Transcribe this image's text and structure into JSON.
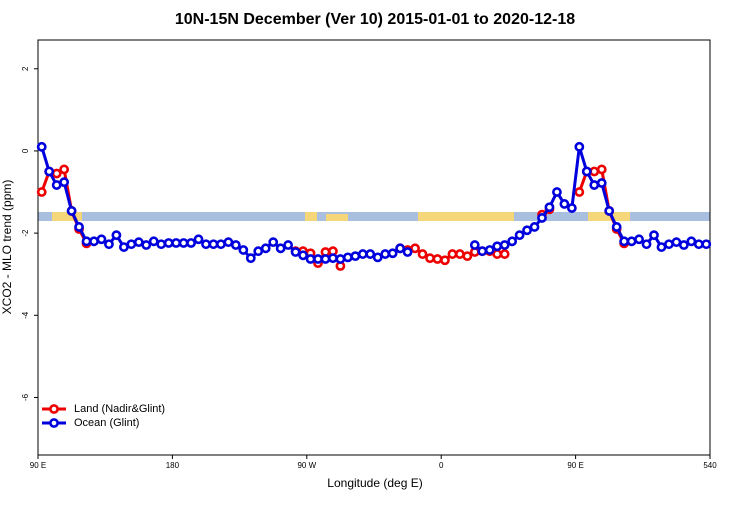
{
  "chart_data": {
    "type": "line",
    "title": "10N-15N December (Ver 10)   2015-01-01 to 2020-12-18",
    "xlabel": "Longitude (deg E)",
    "ylabel": "XCO2 - MLO trend (ppm)",
    "legend": "bottomleft",
    "x": [
      92.5,
      97.5,
      102.5,
      107.5,
      112.5,
      117.5,
      122.5,
      127.5,
      132.5,
      137.5,
      142.5,
      147.5,
      152.5,
      157.5,
      162.5,
      167.5,
      172.5,
      177.5,
      182.5,
      187.5,
      192.5,
      197.5,
      202.5,
      207.5,
      212.5,
      217.5,
      222.5,
      227.5,
      232.5,
      237.5,
      242.5,
      247.5,
      252.5,
      257.5,
      262.5,
      267.5,
      272.5,
      277.5,
      282.5,
      287.5,
      292.5,
      297.5,
      302.5,
      307.5,
      312.5,
      317.5,
      322.5,
      327.5,
      332.5,
      337.5,
      342.5,
      347.5,
      352.5,
      357.5,
      362.5,
      367.5,
      372.5,
      377.5,
      382.5,
      387.5,
      392.5,
      397.5,
      402.5,
      407.5,
      412.5,
      417.5,
      422.5,
      427.5,
      432.5,
      437.5,
      442.5,
      447.5,
      452.5,
      457.5,
      462.5,
      467.5,
      472.5,
      477.5,
      482.5,
      487.5,
      492.5,
      497.5,
      502.5,
      507.5,
      512.5,
      517.5,
      522.5,
      527.5,
      532.5,
      537.5
    ],
    "series": [
      {
        "name": "Land (Nadir&Glint)",
        "color": "#ee0000",
        "values": [
          -1.0,
          -0.5,
          -0.55,
          -0.45,
          -1.46,
          -1.9,
          -2.25,
          null,
          null,
          null,
          null,
          null,
          null,
          null,
          null,
          null,
          null,
          null,
          null,
          null,
          null,
          null,
          null,
          null,
          null,
          null,
          null,
          null,
          null,
          null,
          null,
          null,
          null,
          null,
          -2.44,
          -2.44,
          -2.49,
          -2.73,
          -2.46,
          -2.44,
          -2.8,
          null,
          null,
          null,
          null,
          null,
          null,
          null,
          -2.37,
          -2.41,
          -2.37,
          -2.51,
          -2.61,
          -2.63,
          -2.66,
          -2.51,
          -2.51,
          -2.56,
          -2.46,
          -2.44,
          -2.44,
          -2.51,
          -2.51,
          null,
          null,
          null,
          null,
          -1.55,
          -1.42,
          null,
          null,
          null,
          -1.0,
          -0.5,
          -0.5,
          -0.45,
          -1.46,
          -1.9,
          -2.25,
          null,
          null,
          null,
          null,
          null,
          null,
          null,
          null,
          null,
          null,
          null
        ]
      },
      {
        "name": "Ocean (Glint)",
        "color": "#0000dd",
        "values": [
          0.1,
          -0.5,
          -0.83,
          -0.76,
          -1.46,
          -1.85,
          -2.2,
          -2.2,
          -2.15,
          -2.27,
          -2.05,
          -2.34,
          -2.27,
          -2.22,
          -2.29,
          -2.2,
          -2.27,
          -2.24,
          -2.24,
          -2.24,
          -2.24,
          -2.15,
          -2.27,
          -2.27,
          -2.27,
          -2.22,
          -2.29,
          -2.41,
          -2.61,
          -2.44,
          -2.37,
          -2.22,
          -2.37,
          -2.29,
          -2.46,
          -2.54,
          -2.63,
          -2.63,
          -2.63,
          -2.61,
          -2.63,
          -2.59,
          -2.56,
          -2.51,
          -2.51,
          -2.59,
          -2.51,
          -2.49,
          -2.37,
          -2.46,
          null,
          null,
          null,
          null,
          null,
          null,
          null,
          null,
          -2.29,
          -2.44,
          -2.41,
          -2.32,
          -2.29,
          -2.2,
          -2.05,
          -1.93,
          -1.85,
          -1.63,
          -1.37,
          -1.0,
          -1.29,
          -1.39,
          0.1,
          -0.5,
          -0.83,
          -0.78,
          -1.46,
          -1.85,
          -2.2,
          -2.2,
          -2.15,
          -2.27,
          -2.05,
          -2.34,
          -2.27,
          -2.22,
          -2.29,
          -2.2,
          -2.27,
          -2.27
        ]
      }
    ],
    "xlim": [
      90,
      540
    ],
    "xticks": [
      {
        "value": 90,
        "label": "90 E"
      },
      180,
      {
        "value": 270,
        "label": "90 W"
      },
      {
        "value": 360,
        "label": "0"
      },
      {
        "value": 450,
        "label": "90 E"
      },
      540
    ],
    "ylim": [
      -7.4,
      2.7
    ],
    "yticks": [
      2,
      0,
      -2,
      -4,
      -6
    ]
  }
}
